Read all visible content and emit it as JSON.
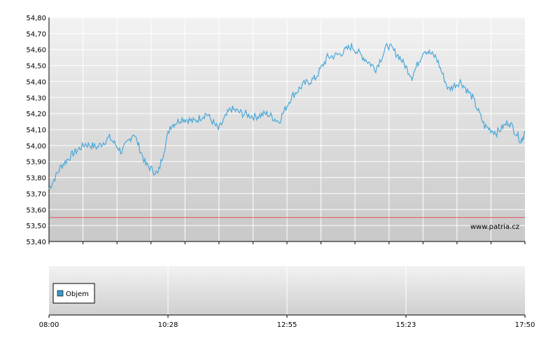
{
  "chart_data": [
    {
      "type": "line",
      "name": "price-panel",
      "ylim": [
        53.4,
        54.8
      ],
      "y_ticks": [
        "53,40",
        "53,50",
        "53,60",
        "53,70",
        "53,80",
        "53,90",
        "54,00",
        "54,10",
        "54,20",
        "54,30",
        "54,40",
        "54,50",
        "54,60",
        "54,70",
        "54,80"
      ],
      "x_range": [
        "08:00",
        "17:50"
      ],
      "reference_line": 53.55,
      "grid": true,
      "colors": {
        "series": "#4aa8d8",
        "reference": "#e05050",
        "grid": "#ffffff"
      },
      "series": [
        {
          "x": [
            "08:00",
            "08:15",
            "08:30",
            "08:45",
            "09:00",
            "09:15",
            "09:30",
            "09:45",
            "10:00",
            "10:15",
            "10:30",
            "10:45",
            "11:00",
            "11:15",
            "11:30",
            "11:45",
            "12:00",
            "12:15",
            "12:30",
            "12:45",
            "13:00",
            "13:15",
            "13:30",
            "13:45",
            "14:00",
            "14:15",
            "14:30",
            "14:45",
            "15:00",
            "15:15",
            "15:30",
            "15:45",
            "16:00",
            "16:15",
            "16:30",
            "16:45",
            "17:00",
            "17:15",
            "17:30",
            "17:45",
            "17:50"
          ],
          "values": [
            53.73,
            53.87,
            53.95,
            54.01,
            53.99,
            54.05,
            53.96,
            54.08,
            53.88,
            53.82,
            54.12,
            54.17,
            54.15,
            54.2,
            54.1,
            54.23,
            54.2,
            54.18,
            54.2,
            54.15,
            54.3,
            54.38,
            54.42,
            54.55,
            54.57,
            54.62,
            54.55,
            54.48,
            54.63,
            54.55,
            54.43,
            54.6,
            54.55,
            54.35,
            54.4,
            54.3,
            54.12,
            54.08,
            54.15,
            54.03,
            54.08
          ]
        }
      ],
      "watermark": "www.patria.cz"
    },
    {
      "type": "bar",
      "name": "volume-panel",
      "legend": [
        "Objem"
      ],
      "legend_color": "#3c96c8",
      "x_ticks": [
        "08:00",
        "10:28",
        "12:55",
        "15:23",
        "17:50"
      ]
    }
  ]
}
